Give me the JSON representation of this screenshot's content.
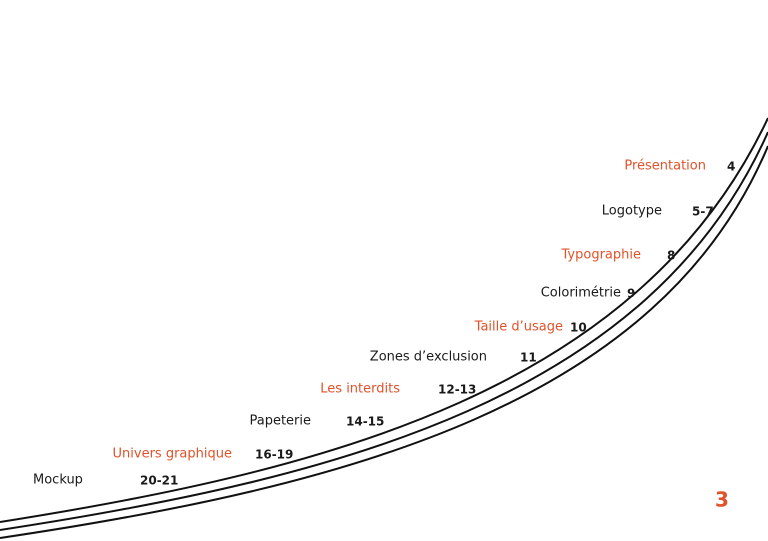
{
  "toc": {
    "entries": [
      {
        "label": "Présentation",
        "page": "4",
        "color": "#e0522a"
      },
      {
        "label": "Logotype",
        "page": "5-7",
        "color": "#1a1a1a"
      },
      {
        "label": "Typographie",
        "page": "8",
        "color": "#e0522a"
      },
      {
        "label": "Colorimétrie",
        "page": "9",
        "color": "#1a1a1a"
      },
      {
        "label": "Taille d’usage",
        "page": "10",
        "color": "#e0522a"
      },
      {
        "label": "Zones d’exclusion",
        "page": "11",
        "color": "#1a1a1a"
      },
      {
        "label": "Les interdits",
        "page": "12-13",
        "color": "#e0522a"
      },
      {
        "label": "Papeterie",
        "page": "14-15",
        "color": "#1a1a1a"
      },
      {
        "label": "Univers graphique",
        "page": "16-19",
        "color": "#e0522a"
      },
      {
        "label": "Mockup",
        "page": "20-21",
        "color": "#1a1a1a"
      }
    ]
  },
  "footer": {
    "page_number": "3",
    "color": "#e0522a"
  }
}
